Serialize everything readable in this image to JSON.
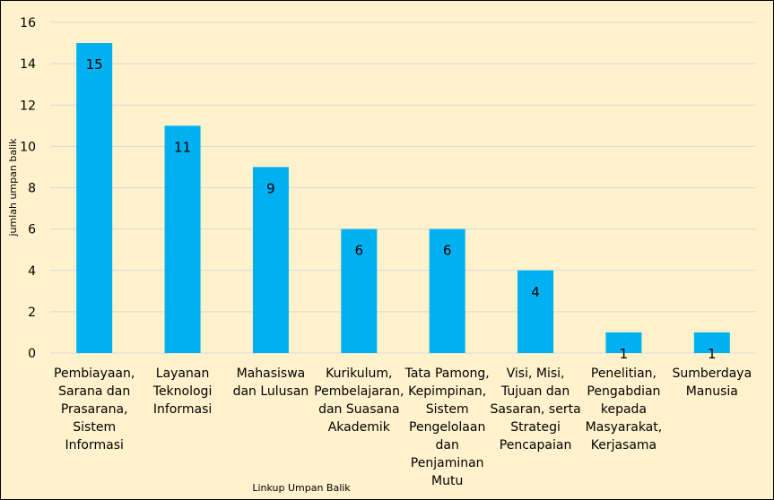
{
  "chart_data": {
    "type": "bar",
    "title": "",
    "xlabel": "Linkup Umpan Balik",
    "ylabel": "jumlah umpan balik",
    "ylim": [
      0,
      16
    ],
    "yticks": [
      0,
      2,
      4,
      6,
      8,
      10,
      12,
      14,
      16
    ],
    "grid": true,
    "legend": "none",
    "categories": [
      "Pembiayaan, Sarana dan Prasarana, Sistem Informasi",
      "Layanan Teknologi Informasi",
      "Mahasiswa dan Lulusan",
      "Kurikulum, Pembelajaran, dan Suasana Akademik",
      "Tata Pamong, Kepimpinan, Sistem Pengelolaan dan Penjaminan Mutu",
      "Visi, Misi, Tujuan dan Sasaran, serta Strategi Pencapaian",
      "Penelitian, Pengabdian kepada Masyarakat, Kerjasama",
      "Sumberdaya Manusia"
    ],
    "category_lines": [
      [
        "Pembiayaan,",
        "Sarana dan",
        "Prasarana,",
        "Sistem",
        "Informasi"
      ],
      [
        "Layanan",
        "Teknologi",
        "Informasi"
      ],
      [
        "Mahasiswa",
        "dan Lulusan"
      ],
      [
        "Kurikulum,",
        "Pembelajaran,",
        "dan Suasana",
        "Akademik"
      ],
      [
        "Tata Pamong,",
        "Kepimpinan,",
        "Sistem",
        "Pengelolaan",
        "dan",
        "Penjaminan",
        "Mutu"
      ],
      [
        "Visi, Misi,",
        "Tujuan dan",
        "Sasaran, serta",
        "Strategi",
        "Pencapaian"
      ],
      [
        "Penelitian,",
        "Pengabdian",
        "kepada",
        "Masyarakat,",
        "Kerjasama"
      ],
      [
        "Sumberdaya",
        "Manusia"
      ]
    ],
    "values": [
      15,
      11,
      9,
      6,
      6,
      4,
      1,
      1
    ],
    "colors": {
      "bar": "#00b0f0",
      "grid": "#d9d9d9",
      "background": "#fff2cc"
    }
  }
}
